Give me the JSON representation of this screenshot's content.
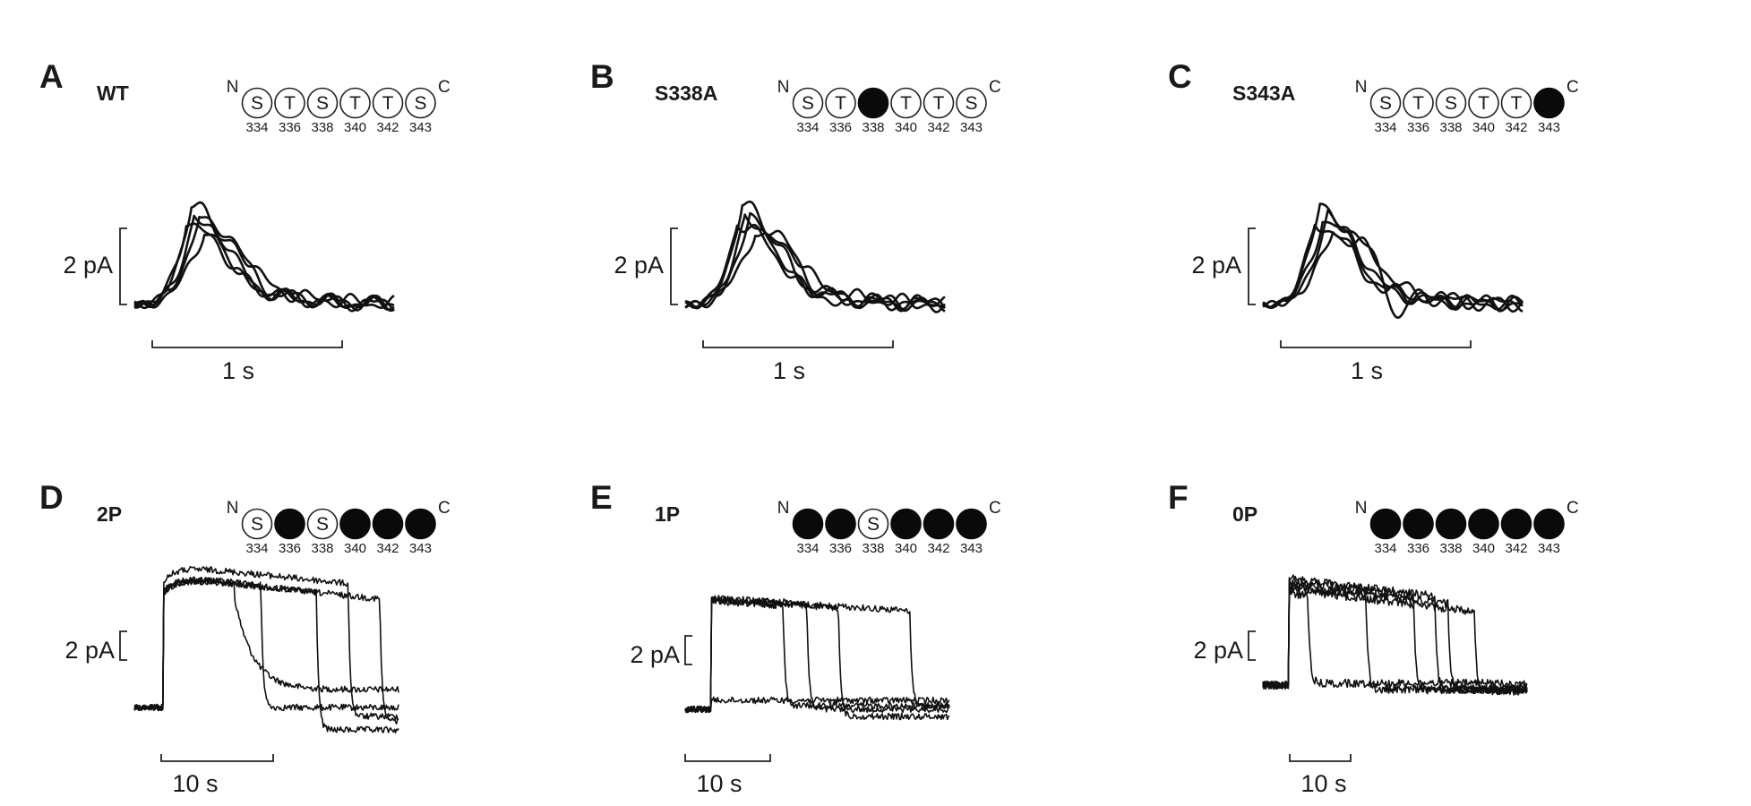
{
  "panels": [
    {
      "letter": "A",
      "title": "WT",
      "kind": "fast",
      "n_terminal": "N",
      "c_terminal": "C",
      "sites": [
        {
          "residue": "S",
          "number": "334",
          "filled": false
        },
        {
          "residue": "T",
          "number": "336",
          "filled": false
        },
        {
          "residue": "S",
          "number": "338",
          "filled": false
        },
        {
          "residue": "T",
          "number": "340",
          "filled": false
        },
        {
          "residue": "T",
          "number": "342",
          "filled": false
        },
        {
          "residue": "S",
          "number": "343",
          "filled": false
        }
      ],
      "current_scale_label": "2 pA",
      "time_scale_label": "1 s"
    },
    {
      "letter": "B",
      "title": "S338A",
      "kind": "fast",
      "n_terminal": "N",
      "c_terminal": "C",
      "sites": [
        {
          "residue": "S",
          "number": "334",
          "filled": false
        },
        {
          "residue": "T",
          "number": "336",
          "filled": false
        },
        {
          "residue": "",
          "number": "338",
          "filled": true
        },
        {
          "residue": "T",
          "number": "340",
          "filled": false
        },
        {
          "residue": "T",
          "number": "342",
          "filled": false
        },
        {
          "residue": "S",
          "number": "343",
          "filled": false
        }
      ],
      "current_scale_label": "2 pA",
      "time_scale_label": "1 s"
    },
    {
      "letter": "C",
      "title": "S343A",
      "kind": "fast",
      "n_terminal": "N",
      "c_terminal": "C",
      "sites": [
        {
          "residue": "S",
          "number": "334",
          "filled": false
        },
        {
          "residue": "T",
          "number": "336",
          "filled": false
        },
        {
          "residue": "S",
          "number": "338",
          "filled": false
        },
        {
          "residue": "T",
          "number": "340",
          "filled": false
        },
        {
          "residue": "T",
          "number": "342",
          "filled": false
        },
        {
          "residue": "",
          "number": "343",
          "filled": true
        }
      ],
      "current_scale_label": "2 pA",
      "time_scale_label": "1 s"
    },
    {
      "letter": "D",
      "title": "2P",
      "kind": "slow",
      "n_terminal": "N",
      "c_terminal": "C",
      "sites": [
        {
          "residue": "S",
          "number": "334",
          "filled": false
        },
        {
          "residue": "",
          "number": "336",
          "filled": true
        },
        {
          "residue": "S",
          "number": "338",
          "filled": false
        },
        {
          "residue": "",
          "number": "340",
          "filled": true
        },
        {
          "residue": "",
          "number": "342",
          "filled": true
        },
        {
          "residue": "",
          "number": "343",
          "filled": true
        }
      ],
      "current_scale_label": "2 pA",
      "time_scale_label": "10 s"
    },
    {
      "letter": "E",
      "title": "1P",
      "kind": "slow",
      "n_terminal": "N",
      "c_terminal": "C",
      "sites": [
        {
          "residue": "",
          "number": "334",
          "filled": true
        },
        {
          "residue": "",
          "number": "336",
          "filled": true
        },
        {
          "residue": "S",
          "number": "338",
          "filled": false
        },
        {
          "residue": "",
          "number": "340",
          "filled": true
        },
        {
          "residue": "",
          "number": "342",
          "filled": true
        },
        {
          "residue": "",
          "number": "343",
          "filled": true
        }
      ],
      "current_scale_label": "2 pA",
      "time_scale_label": "10 s"
    },
    {
      "letter": "F",
      "title": "0P",
      "kind": "slow",
      "n_terminal": "N",
      "c_terminal": "C",
      "sites": [
        {
          "residue": "",
          "number": "334",
          "filled": true
        },
        {
          "residue": "",
          "number": "336",
          "filled": true
        },
        {
          "residue": "",
          "number": "338",
          "filled": true
        },
        {
          "residue": "",
          "number": "340",
          "filled": true
        },
        {
          "residue": "",
          "number": "342",
          "filled": true
        },
        {
          "residue": "",
          "number": "343",
          "filled": true
        }
      ],
      "current_scale_label": "2 pA",
      "time_scale_label": "10 s"
    }
  ]
}
